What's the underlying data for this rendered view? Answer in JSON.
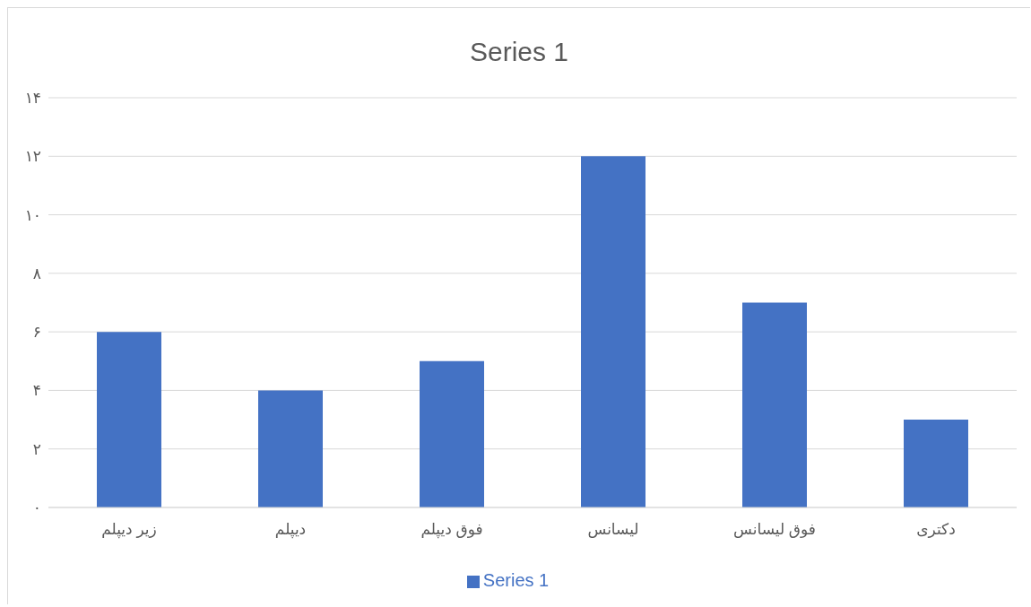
{
  "chart_data": {
    "type": "bar",
    "title": "Series 1",
    "categories": [
      "زیر دیپلم",
      "دیپلم",
      "فوق دیپلم",
      "لیسانس",
      "فوق لیسانس",
      "دکتری"
    ],
    "series": [
      {
        "name": "Series 1",
        "color": "#4472c4",
        "values": [
          6,
          4,
          5,
          12,
          7,
          3
        ]
      }
    ],
    "ylim": [
      0,
      14
    ],
    "yticks": [
      {
        "value": 0,
        "label": "۰"
      },
      {
        "value": 2,
        "label": "۲"
      },
      {
        "value": 4,
        "label": "۴"
      },
      {
        "value": 6,
        "label": "۶"
      },
      {
        "value": 8,
        "label": "۸"
      },
      {
        "value": 10,
        "label": "۱۰"
      },
      {
        "value": 12,
        "label": "۱۲"
      },
      {
        "value": 14,
        "label": "۱۴"
      }
    ],
    "grid": "y",
    "legend": "bottom"
  }
}
